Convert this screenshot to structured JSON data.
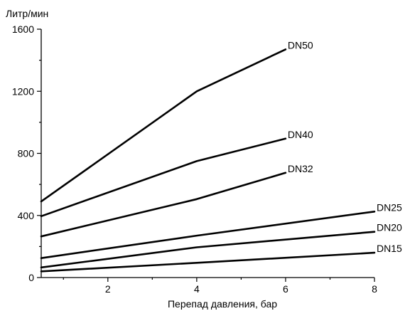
{
  "chart_data": {
    "type": "line",
    "ylabel": "Литр/мин",
    "xlabel": "Перепад давления, бар",
    "xlim": [
      0.5,
      8
    ],
    "ylim": [
      0,
      1600
    ],
    "x_ticks": [
      2,
      4,
      6,
      8
    ],
    "x_minor_ticks": [
      1,
      3,
      5,
      7
    ],
    "y_ticks": [
      0,
      400,
      800,
      1200,
      1600
    ],
    "y_minor_ticks": [
      200,
      600,
      1000,
      1400
    ],
    "grid": false,
    "line_color": "#000000",
    "series": [
      {
        "name": "DN50",
        "x": [
          0.5,
          4,
          6
        ],
        "y": [
          490,
          1200,
          1470
        ]
      },
      {
        "name": "DN40",
        "x": [
          0.5,
          4,
          6
        ],
        "y": [
          395,
          750,
          895
        ]
      },
      {
        "name": "DN32",
        "x": [
          0.5,
          4,
          6
        ],
        "y": [
          265,
          505,
          675
        ]
      },
      {
        "name": "DN25",
        "x": [
          0.5,
          4,
          8
        ],
        "y": [
          125,
          270,
          425
        ]
      },
      {
        "name": "DN20",
        "x": [
          0.5,
          4,
          8
        ],
        "y": [
          65,
          195,
          295
        ]
      },
      {
        "name": "DN15",
        "x": [
          0.5,
          4,
          8
        ],
        "y": [
          40,
          95,
          160
        ]
      }
    ]
  }
}
